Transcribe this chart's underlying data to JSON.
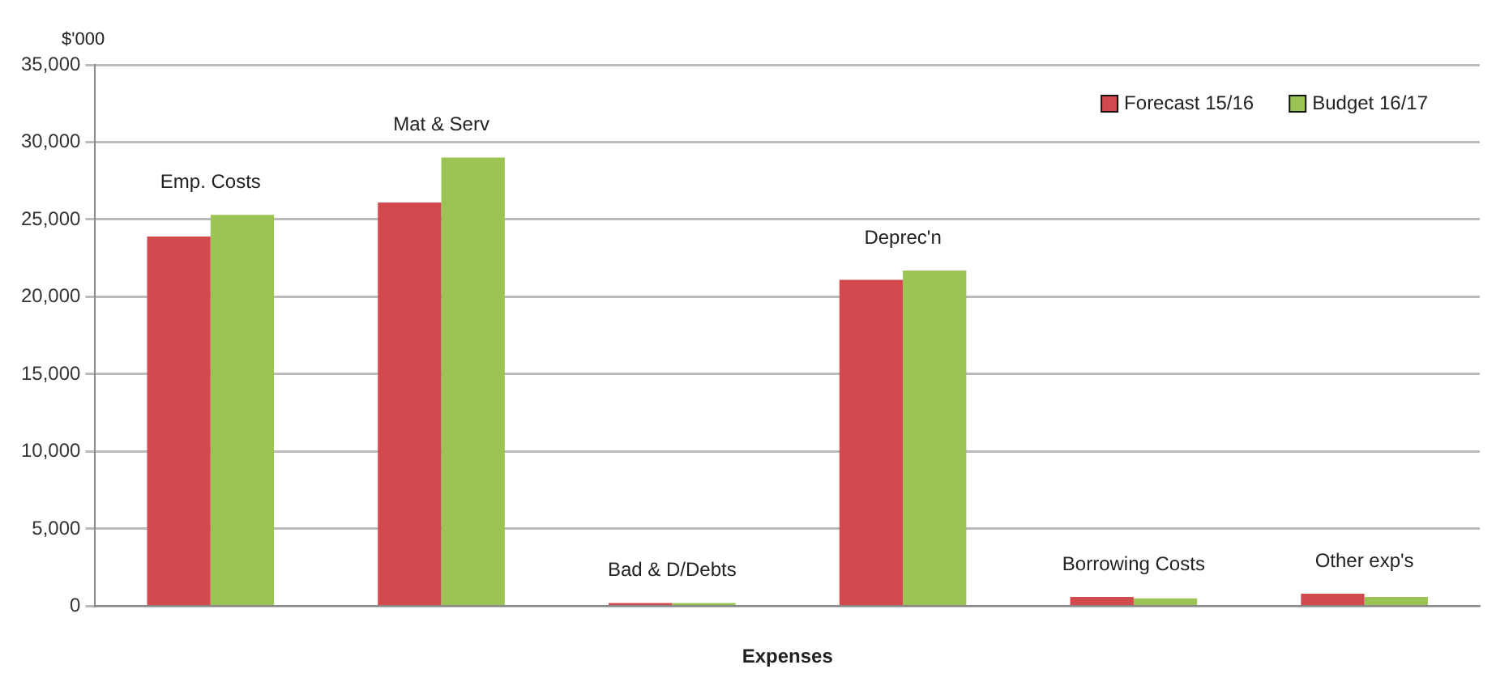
{
  "chart_data": {
    "type": "bar",
    "xlabel": "Expenses",
    "ylabel": "$'000",
    "categories": [
      null,
      null,
      null,
      null,
      null,
      null
    ],
    "series": [
      {
        "name": "Forecast 15/16",
        "color": "#d24a4e",
        "values": [
          23900,
          26100,
          200,
          21100,
          600,
          800
        ]
      },
      {
        "name": "Budget 16/17",
        "color": "#9bc455",
        "values": [
          25300,
          29000,
          200,
          21700,
          500,
          600
        ]
      }
    ],
    "annotations": [
      "Emp. Costs",
      "Mat & Serv",
      "Bad & D/Debts",
      "Deprec'n",
      "Borrowing Costs",
      "Other exp's"
    ],
    "ylim": [
      0,
      35000
    ],
    "yticks": [
      0,
      {
        "value": 5000,
        "label": "5,000"
      },
      {
        "value": 10000,
        "label": "10,000"
      },
      {
        "value": 15000,
        "label": "15,000"
      },
      {
        "value": 20000,
        "label": "20,000"
      },
      {
        "value": 25000,
        "label": "25,000"
      },
      {
        "value": 30000,
        "label": "30,000"
      },
      {
        "value": 35000,
        "label": "35,000"
      }
    ],
    "grid": "y",
    "legend": "top right"
  }
}
